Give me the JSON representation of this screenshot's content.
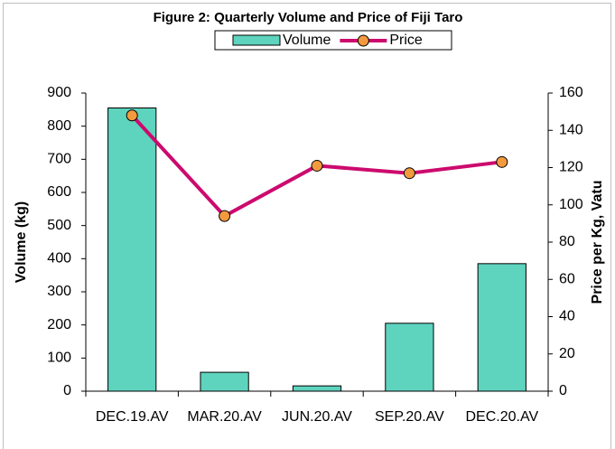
{
  "chart_data": {
    "type": "bar",
    "title": "Figure 2: Quarterly Volume and Price of Fiji Taro",
    "y_label": "Volume (kg)",
    "y2_label": "Price per Kg, Vatu",
    "categories": [
      "DEC.19.AV",
      "MAR.20.AV",
      "JUN.20.AV",
      "SEP.20.AV",
      "DEC.20.AV"
    ],
    "series": [
      {
        "name": "Volume",
        "type": "bar",
        "color": "#5ed3be",
        "values": [
          855,
          57,
          16,
          205,
          385
        ]
      },
      {
        "name": "Price",
        "type": "line",
        "axis": "y2",
        "color": "#cc0a6e",
        "marker_color": "#f39a3e",
        "values": [
          148,
          94,
          121,
          117,
          123
        ]
      }
    ],
    "ylim": [
      0,
      900
    ],
    "yticks": [
      0,
      100,
      200,
      300,
      400,
      500,
      600,
      700,
      800,
      900
    ],
    "y2lim": [
      0,
      160
    ],
    "y2ticks": [
      0,
      20,
      40,
      60,
      80,
      100,
      120,
      140,
      160
    ],
    "legend": "top"
  }
}
